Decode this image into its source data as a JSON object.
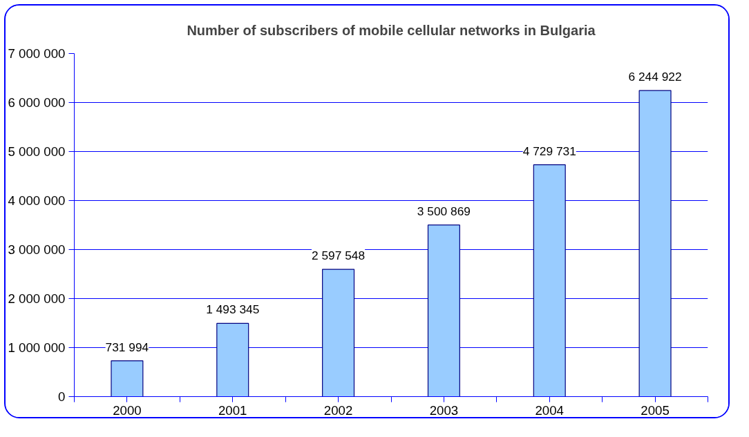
{
  "chart_data": {
    "type": "bar",
    "title": "Number of subscribers of mobile cellular networks in Bulgaria",
    "categories": [
      "2000",
      "2001",
      "2002",
      "2003",
      "2004",
      "2005"
    ],
    "values": [
      731994,
      1493345,
      2597548,
      3500869,
      4729731,
      6244922
    ],
    "value_labels": [
      "731 994",
      "1 493 345",
      "2 597 548",
      "3 500 869",
      "4 729 731",
      "6 244 922"
    ],
    "color": "#99ccff",
    "ylim": [
      0,
      7000000
    ],
    "yticks": [
      {
        "value": 0,
        "label": "0"
      },
      {
        "value": 1000000,
        "label": "1 000 000"
      },
      {
        "value": 2000000,
        "label": "2 000 000"
      },
      {
        "value": 3000000,
        "label": "3 000 000"
      },
      {
        "value": 4000000,
        "label": "4 000 000"
      },
      {
        "value": 5000000,
        "label": "5 000 000"
      },
      {
        "value": 6000000,
        "label": "6 000 000"
      },
      {
        "value": 7000000,
        "label": "7 000 000"
      }
    ],
    "grid": "y"
  }
}
